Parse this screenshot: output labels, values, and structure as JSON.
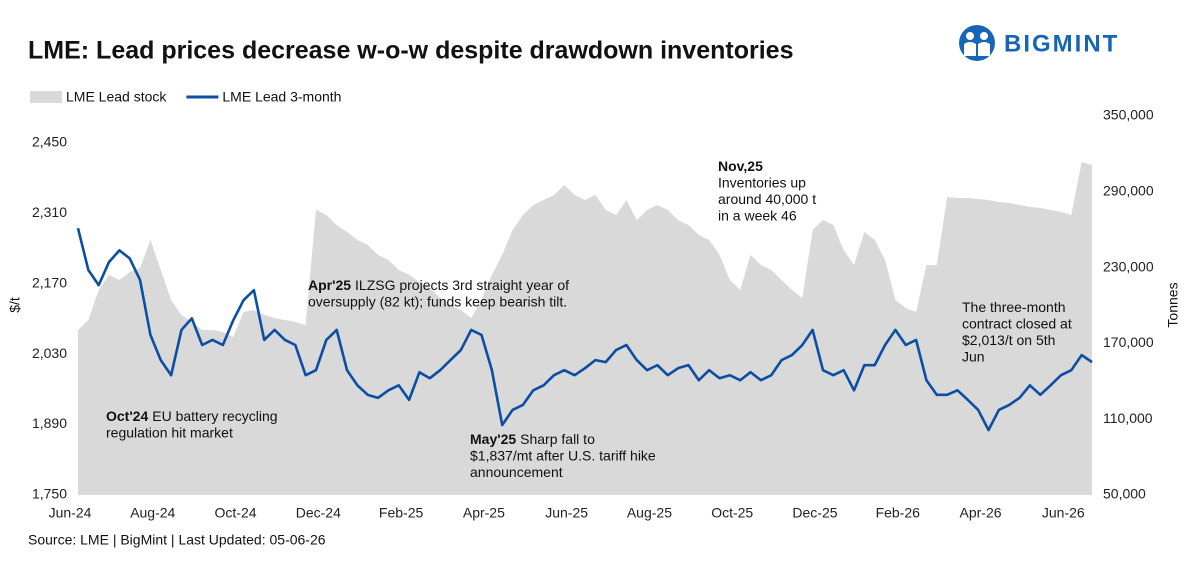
{
  "chart_data": {
    "type": "area-line",
    "title": "LME: Lead prices decrease w-o-w despite drawdown inventories",
    "logo": "BIGMINT",
    "source": "Source: LME | BigMint | Last Updated: 05-06-26",
    "y_label": "$/t",
    "y2_label": "Tonnes",
    "categories": [
      "Jun-24",
      null,
      null,
      null,
      null,
      null,
      null,
      null,
      "Aug-24",
      null,
      null,
      null,
      null,
      null,
      null,
      null,
      "Oct-24",
      null,
      null,
      null,
      null,
      null,
      null,
      null,
      "Dec-24",
      null,
      null,
      null,
      null,
      null,
      null,
      null,
      "Feb-25",
      null,
      null,
      null,
      null,
      null,
      null,
      null,
      "Apr-25",
      null,
      null,
      null,
      null,
      null,
      null,
      null,
      "Jun-25",
      null,
      null,
      null,
      null,
      null,
      null,
      null,
      "Aug-25",
      null,
      null,
      null,
      null,
      null,
      null,
      null,
      "Oct-25",
      null,
      null,
      null,
      null,
      null,
      null,
      null,
      "Dec-25",
      null,
      null,
      null,
      null,
      null,
      null,
      null,
      "Feb-26",
      null,
      null,
      null,
      null,
      null,
      null,
      null,
      "Apr-26",
      null,
      null,
      null,
      null,
      null,
      null,
      null,
      "Jun-26",
      null,
      null
    ],
    "series": [
      {
        "name": "LME Lead stock",
        "type": "area",
        "axis": "y2",
        "color": "#d9d9d9",
        "values": [
          180600,
          188500,
          212300,
          224200,
          220200,
          226500,
          229700,
          251900,
          228100,
          204400,
          192500,
          187000,
          180600,
          180600,
          179000,
          175100,
          194900,
          196400,
          192500,
          190100,
          188500,
          187000,
          184600,
          275600,
          271600,
          263700,
          258200,
          251900,
          247900,
          240000,
          236000,
          228100,
          224200,
          218600,
          213900,
          205900,
          200400,
          196400,
          190100,
          204400,
          224200,
          240000,
          259800,
          271600,
          279600,
          283500,
          287500,
          295400,
          287500,
          283500,
          287500,
          275600,
          271600,
          283500,
          267700,
          275600,
          279600,
          275600,
          267700,
          263700,
          255800,
          251900,
          240000,
          220200,
          212300,
          240000,
          232100,
          228100,
          220200,
          212300,
          205900,
          259800,
          267700,
          263700,
          243900,
          232100,
          258200,
          251900,
          236000,
          204400,
          198000,
          194900,
          232100,
          232100,
          285900,
          285100,
          285100,
          284300,
          283500,
          281900,
          281100,
          279600,
          278000,
          277200,
          275600,
          274100,
          271600,
          313600,
          311200
        ]
      },
      {
        "name": "LME Lead 3-month",
        "type": "line",
        "axis": "y",
        "color": "#0b4ea2",
        "values": [
          2280,
          2197,
          2167,
          2213,
          2236,
          2220,
          2177,
          2068,
          2018,
          1988,
          2078,
          2101,
          2048,
          2058,
          2048,
          2097,
          2137,
          2157,
          2058,
          2078,
          2058,
          2048,
          1988,
          1998,
          2058,
          2078,
          1998,
          1968,
          1949,
          1943,
          1958,
          1968,
          1939,
          1994,
          1982,
          1998,
          2018,
          2038,
          2078,
          2068,
          1998,
          1889,
          1919,
          1929,
          1958,
          1968,
          1988,
          1998,
          1988,
          2002,
          2018,
          2014,
          2038,
          2048,
          2018,
          1998,
          2008,
          1988,
          2002,
          2008,
          1978,
          1998,
          1982,
          1988,
          1978,
          1994,
          1978,
          1988,
          2018,
          2028,
          2048,
          2078,
          1998,
          1988,
          1998,
          1958,
          2008,
          2008,
          2048,
          2078,
          2048,
          2058,
          1978,
          1949,
          1949,
          1958,
          1939,
          1919,
          1879,
          1919,
          1929,
          1943,
          1968,
          1949,
          1968,
          1988,
          1998,
          2028,
          2014
        ]
      }
    ],
    "ylim": [
      1750,
      2503
    ],
    "yticks": [
      {
        "value": 1750,
        "label": "1,750"
      },
      {
        "value": 1890,
        "label": "1,890"
      },
      {
        "value": 2030,
        "label": "2,030"
      },
      {
        "value": 2170,
        "label": "2,170"
      },
      {
        "value": 2310,
        "label": "2,310"
      },
      {
        "value": 2450,
        "label": "2,450"
      }
    ],
    "y2lim": [
      50000,
      350000
    ],
    "y2ticks": [
      {
        "value": 50000,
        "label": "50,000"
      },
      {
        "value": 110000,
        "label": "110,000"
      },
      {
        "value": 170000,
        "label": "170,000"
      },
      {
        "value": 230000,
        "label": "230,000"
      },
      {
        "value": 290000,
        "label": "290,000"
      },
      {
        "value": 350000,
        "label": "350,000"
      }
    ],
    "annotations": [
      {
        "lines": [
          {
            "bold": "Oct'24",
            "text": "EU battery recycling"
          },
          {
            "text": "regulation hit market"
          }
        ]
      },
      {
        "lines": [
          {
            "bold": "Apr'25",
            "text": "ILZSG projects 3rd straight year of"
          },
          {
            "text": "oversupply (82 kt); funds keep bearish tilt."
          }
        ]
      },
      {
        "lines": [
          {
            "bold": "May'25",
            "text": "Sharp fall to"
          },
          {
            "text": "$1,837/mt after U.S. tariff hike"
          },
          {
            "text": "announcement"
          }
        ]
      },
      {
        "lines": [
          {
            "bold": "Nov,25"
          },
          {
            "text": "Inventories up"
          },
          {
            "text": "around 40,000 t"
          },
          {
            "text": "in a week 46"
          }
        ]
      },
      {
        "lines": [
          {
            "text": "The three-month"
          },
          {
            "text": "contract closed at"
          },
          {
            "text": "$2,013/t on 5th"
          },
          {
            "text": "Jun"
          }
        ]
      }
    ]
  }
}
